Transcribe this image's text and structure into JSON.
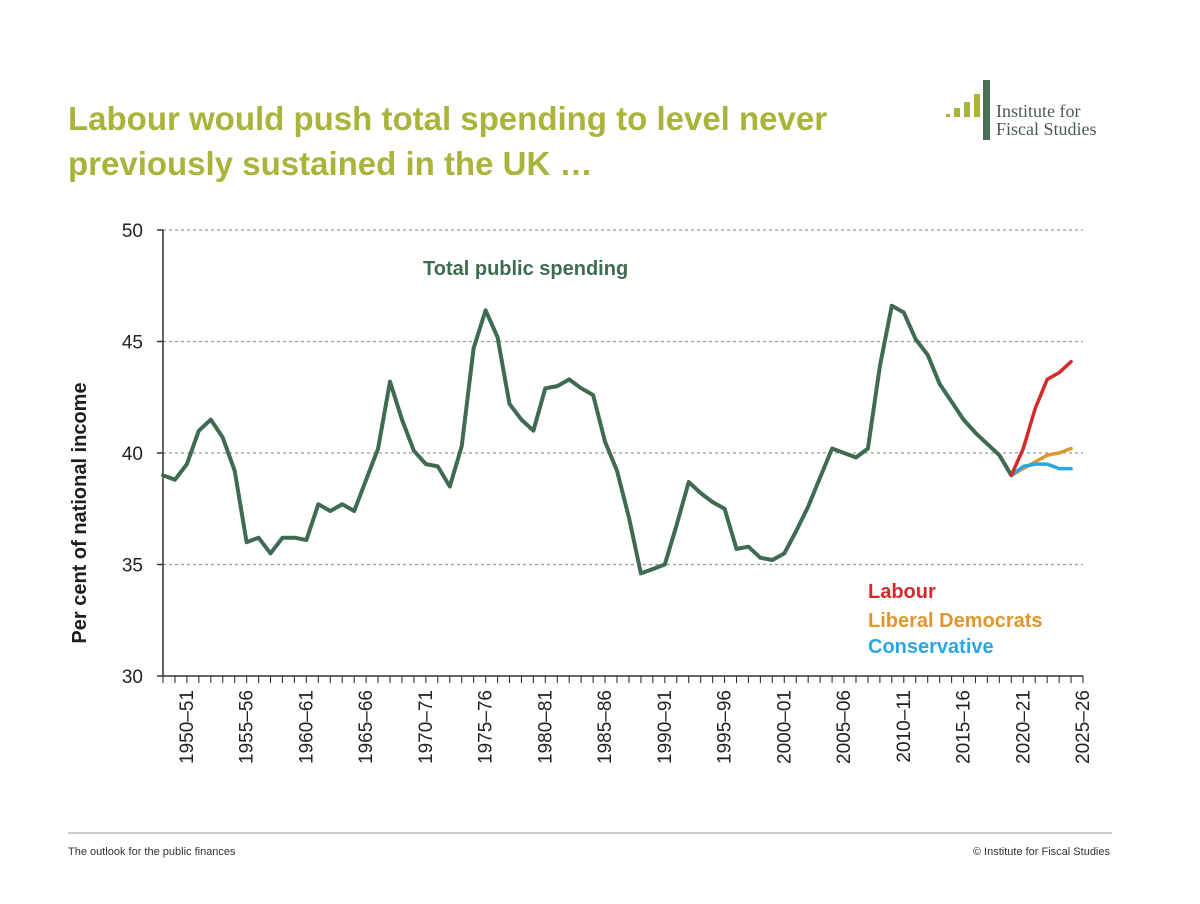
{
  "slide": {
    "title": "Labour would push total spending to level never previously sustained in the UK …",
    "footer_left": "The outlook for the public finances",
    "footer_right": "© Institute for Fiscal Studies"
  },
  "logo": {
    "line1": "Institute for",
    "line2": "Fiscal Studies",
    "colors": [
      "#a9b43a",
      "#4a6e58"
    ]
  },
  "colors": {
    "title": "#a9b43a",
    "total": "#3f6b52",
    "labour": "#d42a2a",
    "libdem": "#e0962e",
    "conservative": "#2aa7e0"
  },
  "chart_data": {
    "type": "line",
    "ylabel": "Per cent of national income",
    "ylim": [
      30,
      50
    ],
    "yticks": [
      30,
      35,
      40,
      45,
      50
    ],
    "grid": true,
    "x_start_year": 1948,
    "x_end_year": 2025,
    "xtick_labels": [
      "1950–51",
      "1955–56",
      "1960–61",
      "1965–66",
      "1970–71",
      "1975–76",
      "1980–81",
      "1985–86",
      "1990–91",
      "1995–96",
      "2000–01",
      "2005–06",
      "2010–11",
      "2015–16",
      "2020–21",
      "2025–26"
    ],
    "xtick_years": [
      1950,
      1955,
      1960,
      1965,
      1970,
      1975,
      1980,
      1985,
      1990,
      1995,
      2000,
      2005,
      2010,
      2015,
      2020,
      2025
    ],
    "series": [
      {
        "name": "Total public spending",
        "key": "total",
        "x": [
          1948,
          1949,
          1950,
          1951,
          1952,
          1953,
          1954,
          1955,
          1956,
          1957,
          1958,
          1959,
          1960,
          1961,
          1962,
          1963,
          1964,
          1965,
          1966,
          1967,
          1968,
          1969,
          1970,
          1971,
          1972,
          1973,
          1974,
          1975,
          1976,
          1977,
          1978,
          1979,
          1980,
          1981,
          1982,
          1983,
          1984,
          1985,
          1986,
          1987,
          1988,
          1989,
          1990,
          1991,
          1992,
          1993,
          1994,
          1995,
          1996,
          1997,
          1998,
          1999,
          2000,
          2001,
          2002,
          2003,
          2004,
          2005,
          2006,
          2007,
          2008,
          2009,
          2010,
          2011,
          2012,
          2013,
          2014,
          2015,
          2016,
          2017,
          2018,
          2019
        ],
        "values": [
          39.0,
          38.8,
          39.5,
          41.0,
          41.5,
          40.7,
          39.2,
          36.0,
          36.2,
          35.5,
          36.2,
          36.2,
          36.1,
          37.7,
          37.4,
          37.7,
          37.4,
          38.8,
          40.2,
          43.2,
          41.5,
          40.1,
          39.5,
          39.4,
          38.5,
          40.3,
          44.7,
          46.4,
          45.2,
          42.2,
          41.5,
          41.0,
          42.9,
          43.0,
          43.3,
          42.9,
          42.6,
          40.5,
          39.2,
          37.1,
          34.6,
          34.8,
          35.0,
          36.8,
          38.7,
          38.2,
          37.8,
          37.5,
          35.7,
          35.8,
          35.3,
          35.2,
          35.5,
          36.5,
          37.6,
          38.9,
          40.2,
          40.0,
          39.8,
          40.2,
          43.9,
          46.6,
          46.3,
          45.1,
          44.4,
          43.1,
          42.3,
          41.5,
          40.9,
          40.4,
          39.9,
          39.0
        ]
      },
      {
        "name": "Labour",
        "key": "labour",
        "x": [
          2019,
          2020,
          2021,
          2022,
          2023,
          2024
        ],
        "values": [
          39.0,
          40.2,
          42.0,
          43.3,
          43.6,
          44.1
        ]
      },
      {
        "name": "Liberal Democrats",
        "key": "libdem",
        "x": [
          2019,
          2020,
          2021,
          2022,
          2023,
          2024
        ],
        "values": [
          39.0,
          39.3,
          39.6,
          39.9,
          40.0,
          40.2
        ]
      },
      {
        "name": "Conservative",
        "key": "conservative",
        "x": [
          2019,
          2020,
          2021,
          2022,
          2023,
          2024
        ],
        "values": [
          39.0,
          39.4,
          39.5,
          39.5,
          39.3,
          39.3
        ]
      }
    ]
  }
}
